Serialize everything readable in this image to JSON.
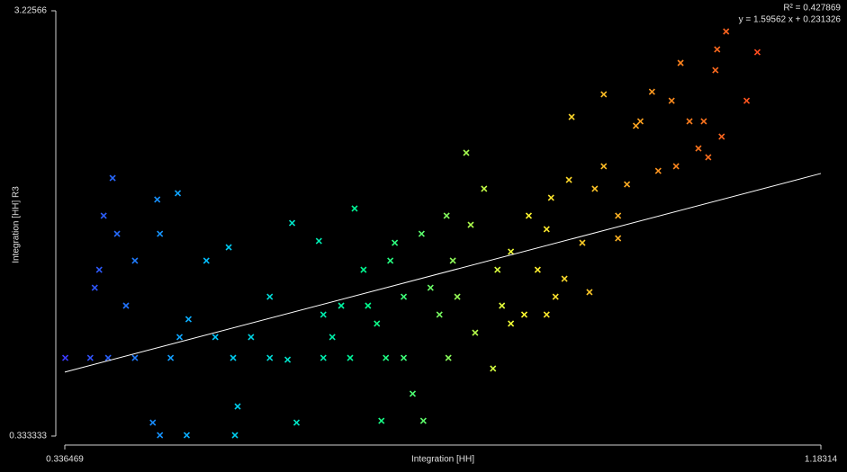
{
  "chart_data": {
    "type": "scatter",
    "xlabel": "Integration [HH]",
    "ylabel": "Integration [HH] R3",
    "annotations": [
      "R² = 0.427869",
      "y = 1.59562 x + 0.231326"
    ],
    "trendline": {
      "slope": 1.59562,
      "intercept": 0.231326,
      "color": "#ffffff"
    },
    "xlim": [
      0.336469,
      1.18314
    ],
    "ylim": [
      0.333333,
      3.22566
    ],
    "xticks": [
      0.336469,
      1.18314
    ],
    "yticks": [
      0.333333,
      3.22566
    ],
    "colormap": [
      "#3b3bff",
      "#00c8ff",
      "#00ff90",
      "#ffff30",
      "#ff8c1e",
      "#ff2020"
    ],
    "x": [
      0.337,
      0.365,
      0.385,
      0.37,
      0.375,
      0.39,
      0.38,
      0.395,
      0.405,
      0.415,
      0.415,
      0.44,
      0.463,
      0.443,
      0.435,
      0.443,
      0.473,
      0.455,
      0.475,
      0.495,
      0.52,
      0.527,
      0.53,
      0.505,
      0.525,
      0.545,
      0.566,
      0.566,
      0.591,
      0.596,
      0.586,
      0.621,
      0.626,
      0.636,
      0.646,
      0.661,
      0.656,
      0.671,
      0.676,
      0.686,
      0.691,
      0.696,
      0.701,
      0.706,
      0.716,
      0.726,
      0.736,
      0.738,
      0.746,
      0.756,
      0.764,
      0.766,
      0.771,
      0.776,
      0.786,
      0.791,
      0.796,
      0.806,
      0.816,
      0.821,
      0.826,
      0.836,
      0.851,
      0.856,
      0.866,
      0.876,
      0.881,
      0.886,
      0.896,
      0.901,
      0.904,
      0.916,
      0.924,
      0.93,
      0.94,
      0.94,
      0.956,
      0.966,
      0.976,
      0.981,
      0.994,
      1.001,
      1.016,
      1.021,
      1.026,
      1.036,
      1.046,
      1.052,
      1.057,
      1.065,
      1.067,
      1.072,
      1.077,
      1.1,
      1.112,
      0.465,
      0.626,
      0.716,
      0.836,
      0.876,
      0.956
    ],
    "y": [
      0.865,
      0.865,
      0.865,
      1.342,
      1.464,
      2.088,
      1.832,
      1.709,
      1.22,
      1.526,
      0.865,
      1.942,
      1.985,
      1.709,
      0.425,
      0.339,
      0.339,
      0.865,
      1.128,
      1.526,
      1.617,
      0.339,
      0.535,
      1.006,
      0.865,
      1.006,
      1.281,
      0.865,
      1.782,
      0.425,
      0.853,
      1.66,
      1.159,
      1.006,
      1.22,
      1.881,
      0.865,
      1.464,
      1.22,
      1.098,
      0.437,
      0.865,
      1.526,
      1.648,
      1.281,
      0.621,
      1.709,
      0.437,
      1.342,
      1.159,
      1.832,
      0.865,
      1.526,
      1.281,
      2.26,
      1.77,
      1.036,
      2.015,
      0.792,
      1.464,
      1.22,
      1.587,
      1.159,
      1.832,
      1.464,
      1.74,
      1.954,
      1.281,
      1.403,
      2.076,
      2.504,
      1.648,
      1.312,
      2.015,
      2.168,
      2.657,
      1.678,
      2.045,
      2.443,
      2.474,
      2.675,
      2.137,
      2.614,
      2.168,
      2.871,
      2.474,
      2.29,
      2.474,
      2.229,
      2.822,
      2.963,
      2.37,
      3.085,
      2.614,
      2.944,
      1.006,
      0.865,
      0.865,
      1.098,
      1.159,
      1.832
    ]
  }
}
